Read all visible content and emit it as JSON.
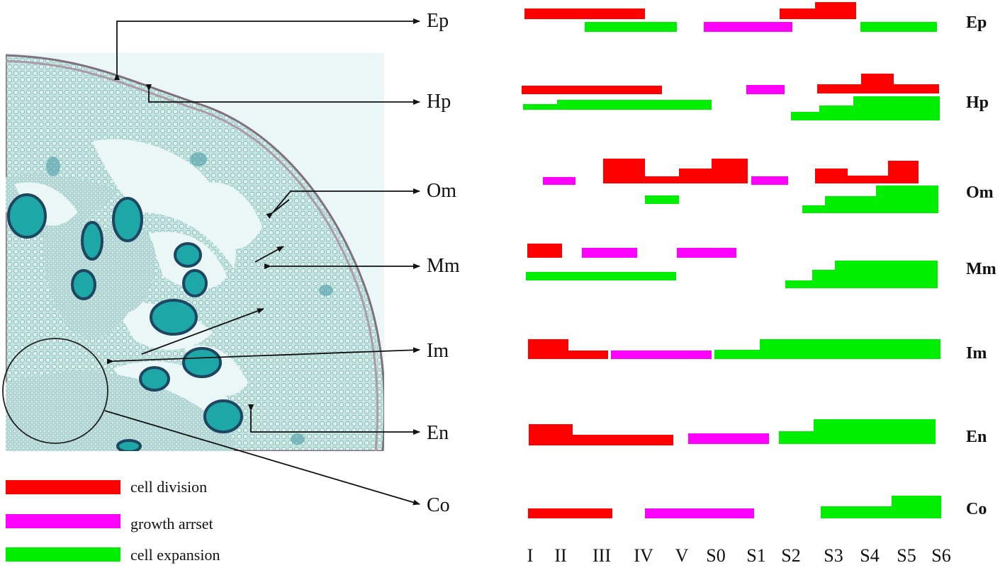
{
  "colors": {
    "cell_division": "#ff0000",
    "growth_arrest": "#ff00ff",
    "cell_expansion": "#00ee00",
    "tissue_cyan": "#3aa8a8",
    "tissue_light": "#d9efec",
    "locule": "#ffffff",
    "anther": "#1aa8a8",
    "anther_dark": "#1c3b5a"
  },
  "tissue_labels": [
    "Ep",
    "Hp",
    "Om",
    "Mm",
    "Im",
    "En",
    "Co"
  ],
  "row_labels": [
    "Ep",
    "Hp",
    "Om",
    "Mm",
    "Im",
    "En",
    "Co"
  ],
  "legend": {
    "division": "cell division",
    "arrest": "growth arrset",
    "expansion": "cell expansion"
  },
  "stages": [
    "I",
    "II",
    "III",
    "IV",
    "V",
    "S0",
    "S1",
    "S2",
    "S3",
    "S4",
    "S5",
    "S6"
  ],
  "icons": {
    "micrograph": "fruit-cross-section-micrograph",
    "circle": "columella-circle-icon",
    "arrows": "pointer-arrow-icon"
  }
}
